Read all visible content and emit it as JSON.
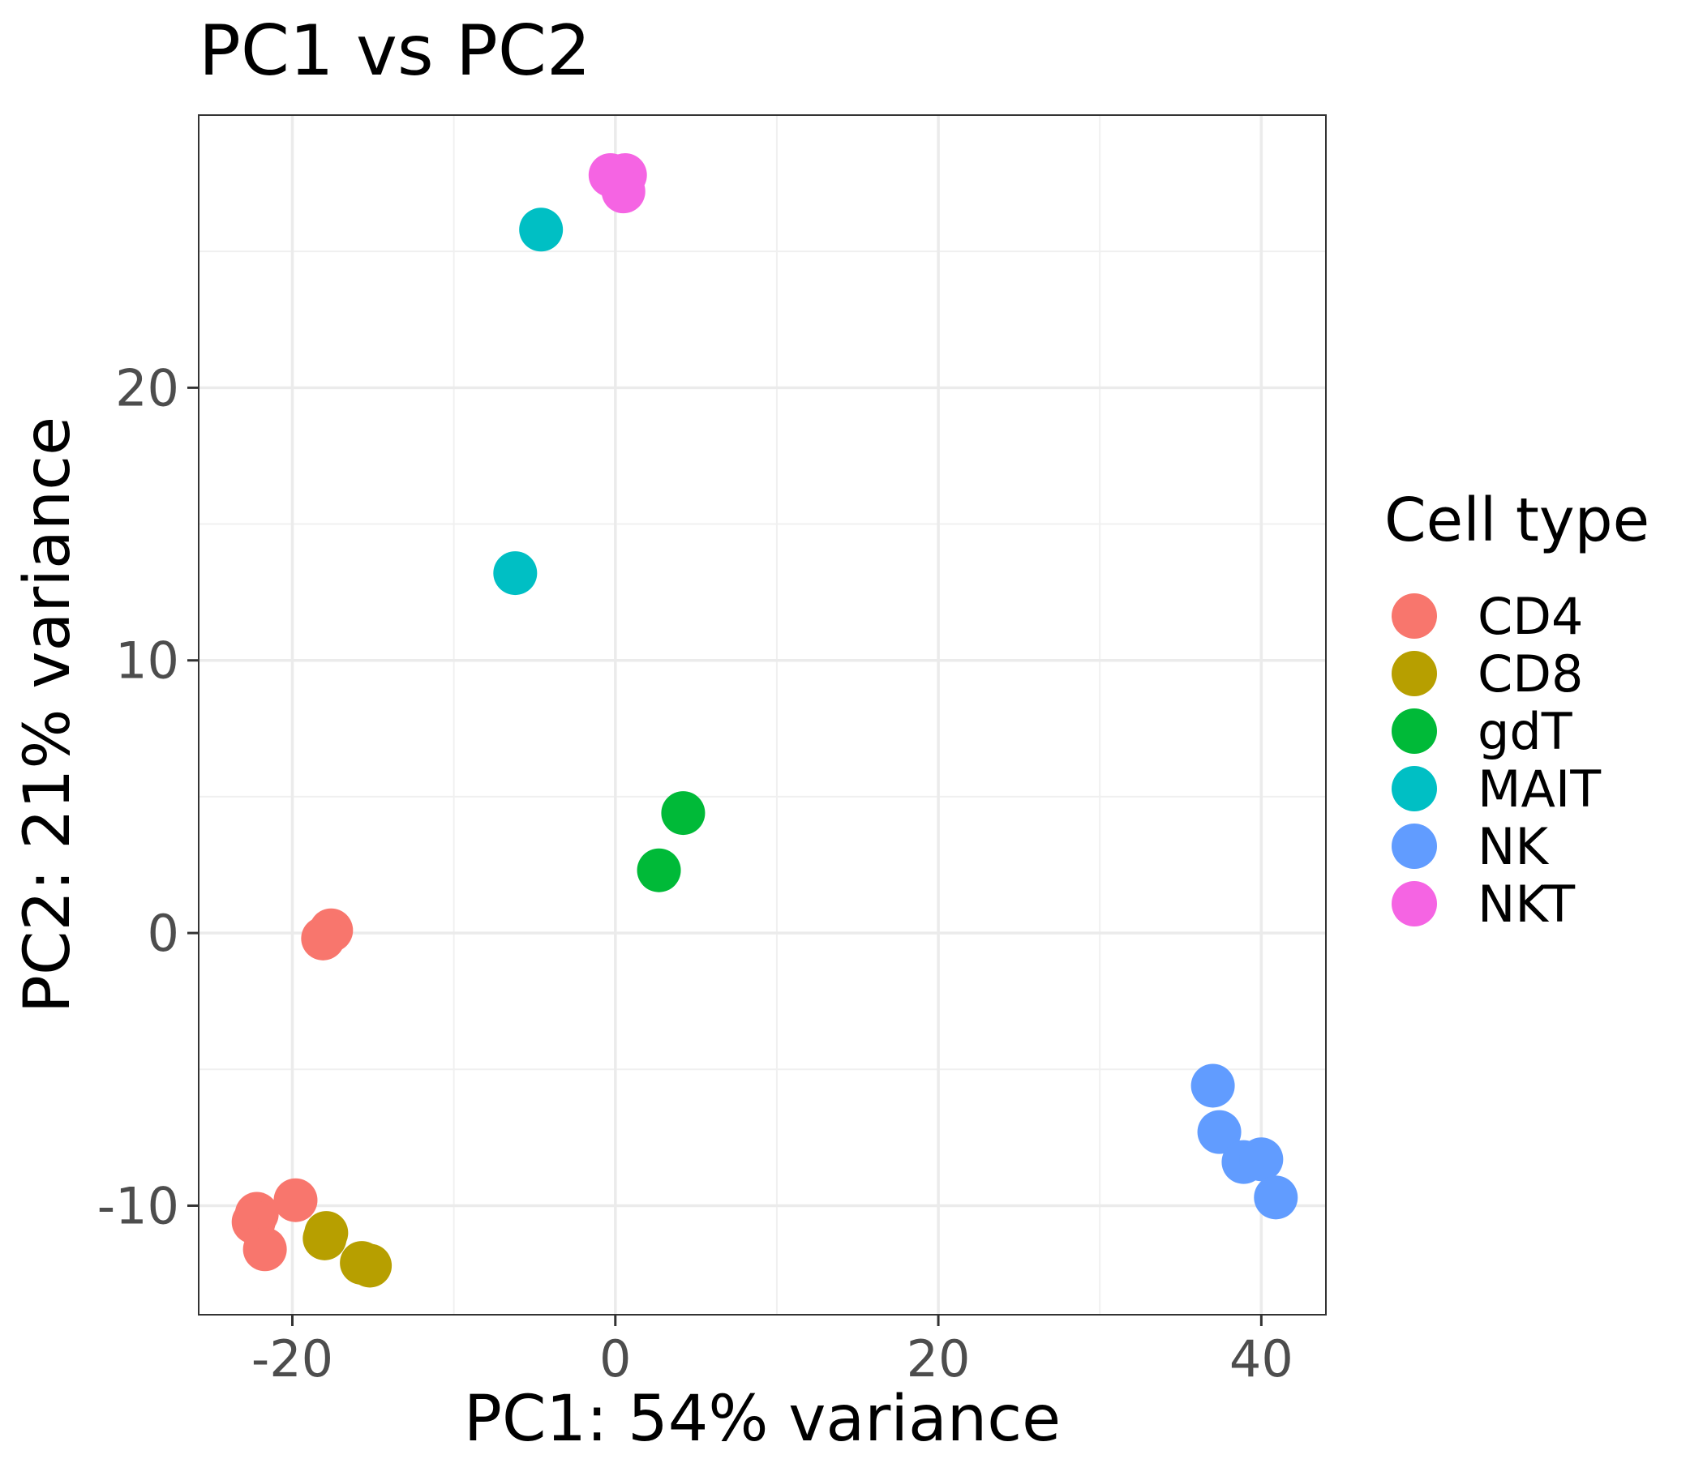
{
  "chart_data": {
    "type": "scatter",
    "title": "PC1 vs PC2",
    "xlabel": "PC1: 54% variance",
    "ylabel": "PC2: 21% variance",
    "xlim": [
      -25.8,
      44
    ],
    "ylim": [
      -14,
      30
    ],
    "x_ticks": [
      -20,
      0,
      20,
      40
    ],
    "y_ticks": [
      -10,
      0,
      10,
      20
    ],
    "x_tick_labels": [
      "-20",
      "0",
      "20",
      "40"
    ],
    "y_tick_labels": [
      "-10",
      "0",
      "10",
      "20"
    ],
    "x_minor_ticks": [
      -10,
      10,
      30
    ],
    "y_minor_ticks": [
      -5,
      5,
      15,
      25
    ],
    "grid": true,
    "legend": {
      "title": "Cell type",
      "position": "right"
    },
    "series": [
      {
        "name": "CD4",
        "color": "#F8766D",
        "points": [
          [
            -17.6,
            0.1
          ],
          [
            -18.1,
            -0.2
          ],
          [
            -19.8,
            -9.8
          ],
          [
            -22.2,
            -10.3
          ],
          [
            -22.4,
            -10.6
          ],
          [
            -21.7,
            -11.6
          ]
        ]
      },
      {
        "name": "CD8",
        "color": "#B79F00",
        "points": [
          [
            -17.9,
            -11.0
          ],
          [
            -18.0,
            -11.2
          ],
          [
            -15.7,
            -12.1
          ],
          [
            -15.2,
            -12.2
          ]
        ]
      },
      {
        "name": "gdT",
        "color": "#00BA38",
        "points": [
          [
            4.2,
            4.4
          ],
          [
            2.7,
            2.3
          ]
        ]
      },
      {
        "name": "MAIT",
        "color": "#00BFC4",
        "points": [
          [
            -4.6,
            25.8
          ],
          [
            -6.2,
            13.2
          ]
        ]
      },
      {
        "name": "NK",
        "color": "#619CFF",
        "points": [
          [
            37.0,
            -5.6
          ],
          [
            37.4,
            -7.3
          ],
          [
            38.9,
            -8.4
          ],
          [
            40.0,
            -8.3
          ],
          [
            40.9,
            -9.7
          ]
        ]
      },
      {
        "name": "NKT",
        "color": "#F564E3",
        "points": [
          [
            -0.3,
            27.8
          ],
          [
            0.6,
            27.8
          ],
          [
            0.5,
            27.2
          ]
        ]
      }
    ]
  }
}
